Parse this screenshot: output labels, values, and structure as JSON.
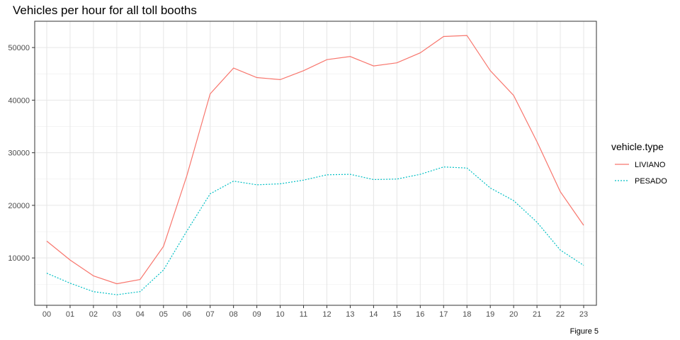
{
  "chart_data": {
    "type": "line",
    "title": "Vehicles per hour for all toll booths",
    "caption": "Figure 5",
    "xlabel": "",
    "ylabel": "",
    "x": [
      "00",
      "01",
      "02",
      "03",
      "04",
      "05",
      "06",
      "07",
      "08",
      "09",
      "10",
      "11",
      "12",
      "13",
      "14",
      "15",
      "16",
      "17",
      "18",
      "19",
      "20",
      "21",
      "22",
      "23"
    ],
    "ylim": [
      1000,
      55000
    ],
    "yticks": [
      10000,
      20000,
      30000,
      40000,
      50000
    ],
    "grid": true,
    "legend": {
      "title": "vehicle.type",
      "position": "right"
    },
    "series": [
      {
        "name": "LIVIANO",
        "color": "#F8766D",
        "linestyle": "solid",
        "values": [
          13200,
          9600,
          6600,
          5100,
          5900,
          12200,
          25600,
          41200,
          46100,
          44300,
          43900,
          45600,
          47700,
          48300,
          46500,
          47100,
          49000,
          52100,
          52300,
          45600,
          40900,
          32100,
          22600,
          16200
        ]
      },
      {
        "name": "PESADO",
        "color": "#00BFC4",
        "linestyle": "dotted",
        "values": [
          7100,
          5200,
          3600,
          3000,
          3600,
          7700,
          15100,
          22200,
          24600,
          23900,
          24100,
          24800,
          25800,
          25900,
          24900,
          25000,
          25900,
          27300,
          27100,
          23300,
          20900,
          16800,
          11500,
          8600
        ]
      }
    ]
  }
}
